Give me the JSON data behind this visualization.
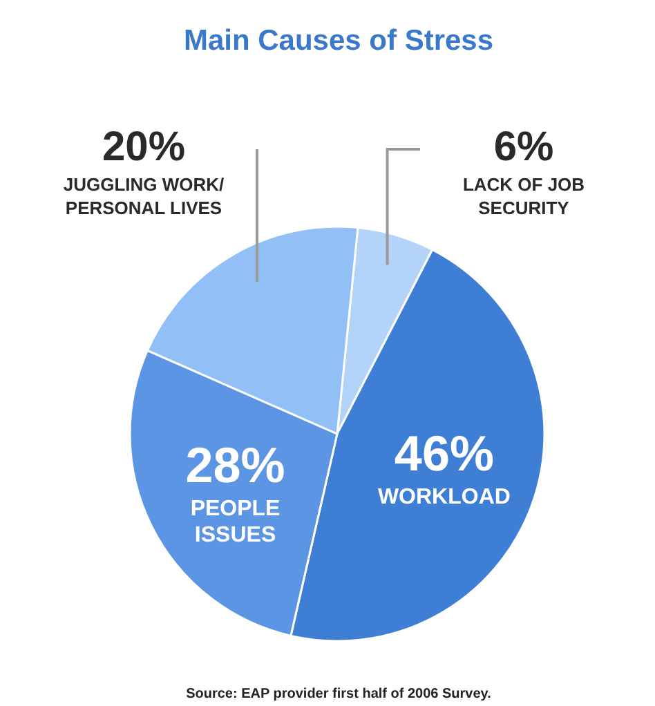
{
  "chart_data": {
    "type": "pie",
    "title": "Main Causes of Stress",
    "categories": [
      "LACK OF JOB\nSECURITY",
      "WORKLOAD",
      "PEOPLE\nISSUES",
      "JUGGLING WORK/\nPERSONAL LIVES"
    ],
    "values": [
      6,
      46,
      28,
      20
    ],
    "colors": [
      "#b3d3f8",
      "#3e7fd5",
      "#5b95e4",
      "#92c0f6"
    ],
    "value_labels": [
      "6%",
      "46%",
      "28%",
      "20%"
    ],
    "annotations": [
      "Source: EAP provider first half of 2006 Survey."
    ]
  }
}
